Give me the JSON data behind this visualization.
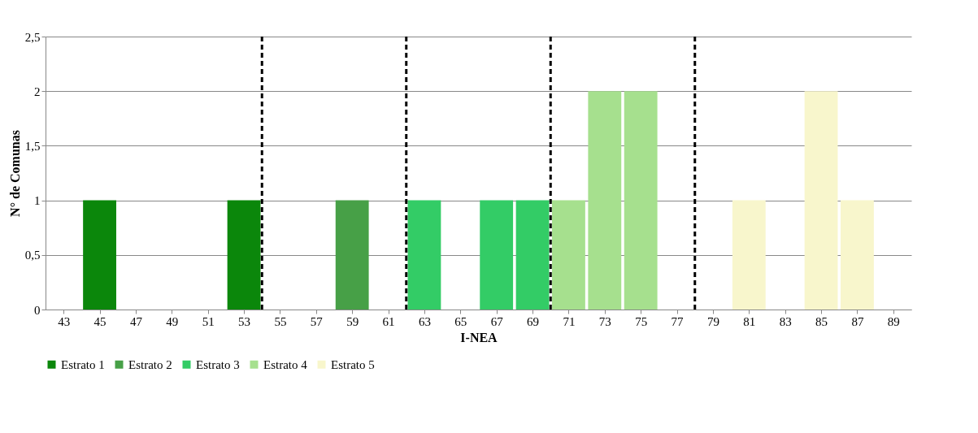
{
  "chart_data": {
    "type": "bar",
    "xlabel": "I-NEA",
    "ylabel": "N° de Comunas",
    "xlim": [
      42,
      90
    ],
    "xticks": [
      43,
      45,
      47,
      49,
      51,
      53,
      55,
      57,
      59,
      61,
      63,
      65,
      67,
      69,
      71,
      73,
      75,
      77,
      79,
      81,
      83,
      85,
      87,
      89
    ],
    "ylim": [
      0,
      2.5
    ],
    "yticks": [
      0,
      {
        "value": 0.5,
        "label": "0,5"
      },
      1,
      {
        "value": 1.5,
        "label": "1,5"
      },
      2,
      {
        "value": 2.5,
        "label": "2,5"
      }
    ],
    "grid": "y",
    "legend": "bottom",
    "series": [
      {
        "name": "Estrato 1",
        "color": "#0b870b",
        "x": [
          45,
          53
        ],
        "values": [
          1,
          1
        ]
      },
      {
        "name": "Estrato 2",
        "color": "#47a047",
        "x": [
          59
        ],
        "values": [
          1
        ]
      },
      {
        "name": "Estrato 3",
        "color": "#33cc66",
        "x": [
          63,
          67,
          69
        ],
        "values": [
          1,
          1,
          1
        ]
      },
      {
        "name": "Estrato 4",
        "color": "#a6e08e",
        "x": [
          71,
          73,
          75
        ],
        "values": [
          1,
          2,
          2
        ]
      },
      {
        "name": "Estrato 5",
        "color": "#f8f6cc",
        "x": [
          81,
          85,
          87
        ],
        "values": [
          1,
          2,
          1
        ]
      }
    ],
    "ref_lines": [
      {
        "axis": "x",
        "value": 54,
        "color": "#000000",
        "line_style": "dashed"
      },
      {
        "axis": "x",
        "value": 62,
        "color": "#000000",
        "line_style": "dashed"
      },
      {
        "axis": "x",
        "value": 70,
        "color": "#000000",
        "line_style": "dashed"
      },
      {
        "axis": "x",
        "value": 78,
        "color": "#000000",
        "line_style": "dashed"
      }
    ]
  }
}
